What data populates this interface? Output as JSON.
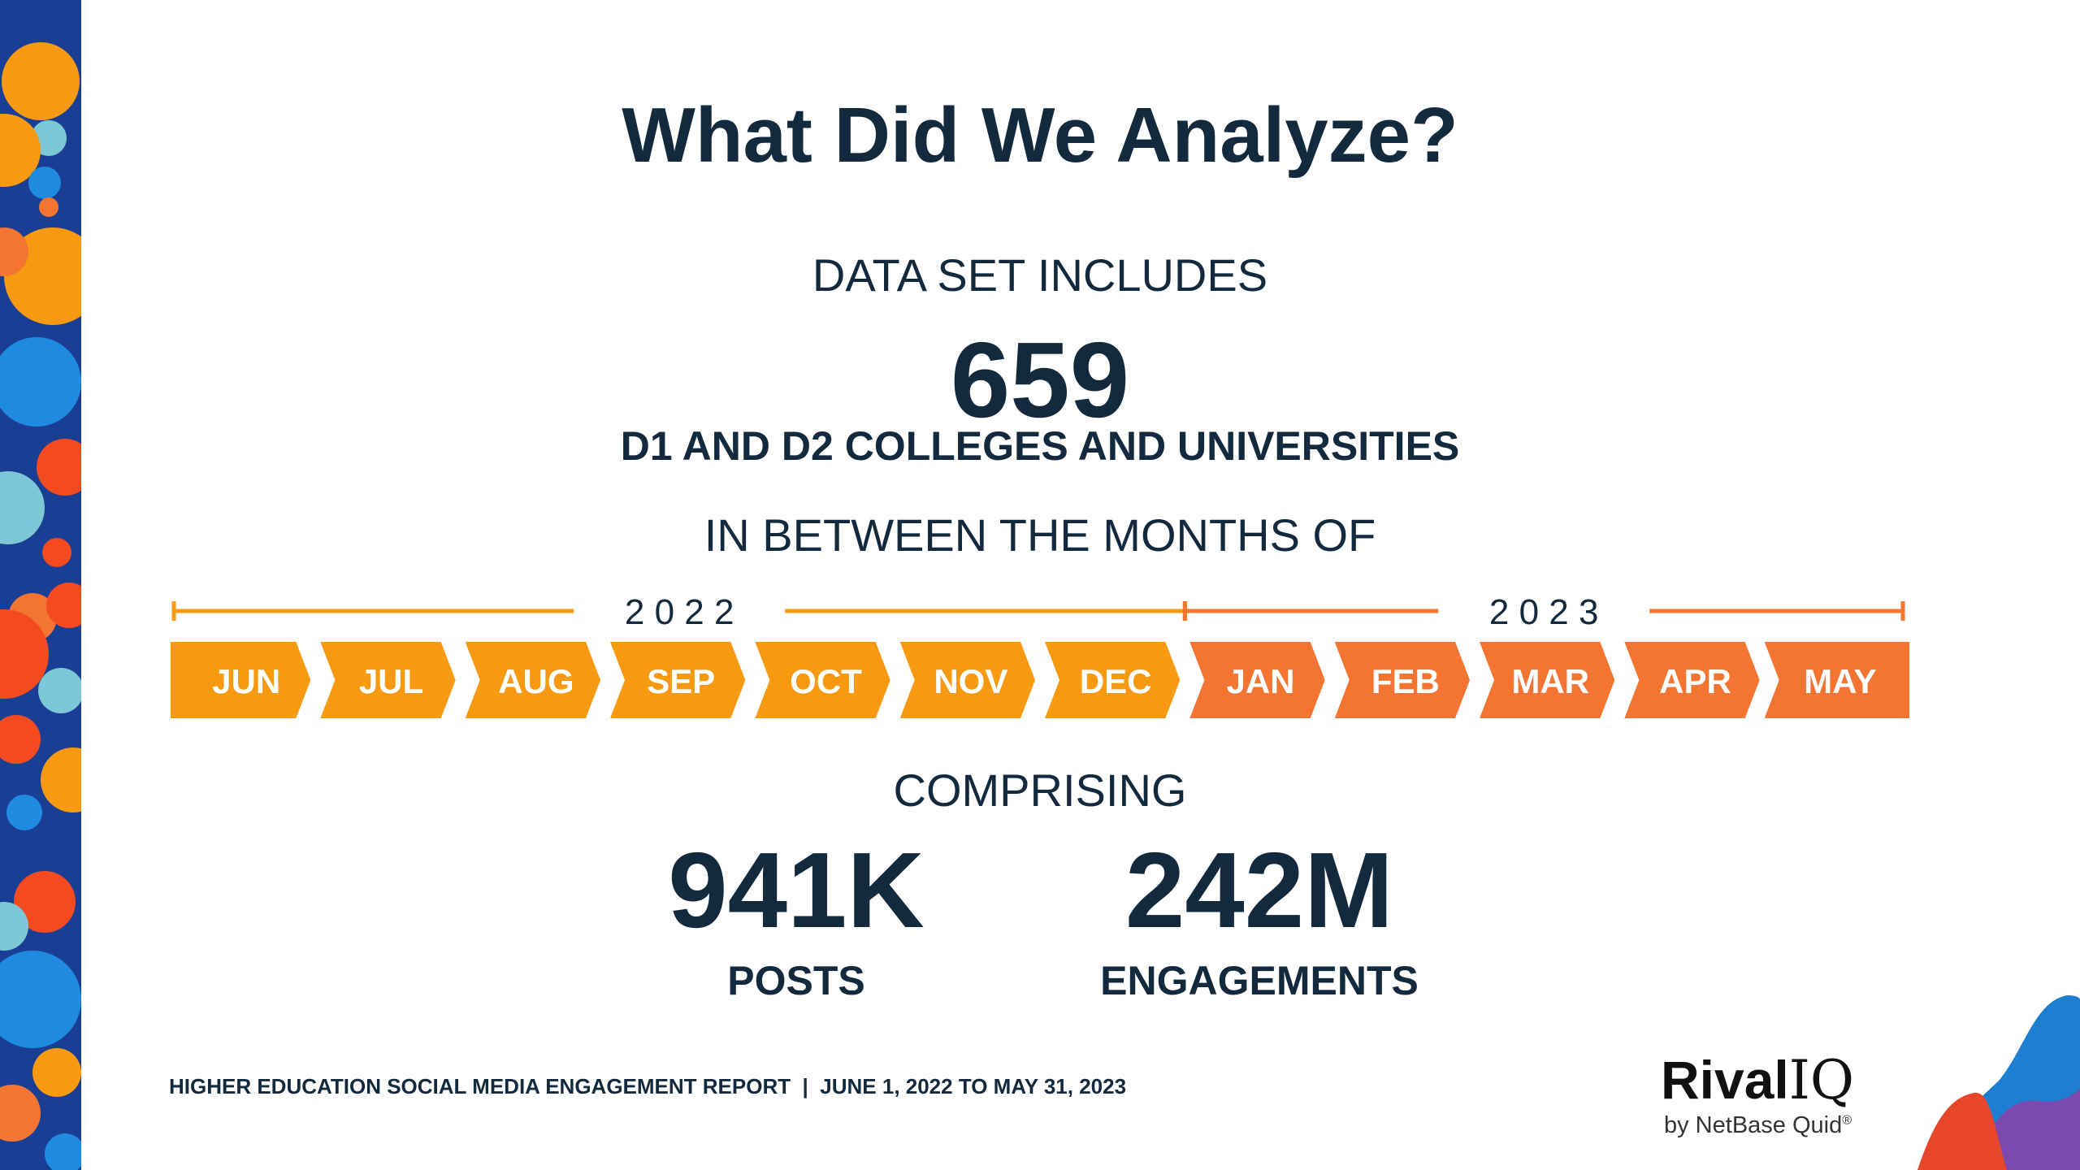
{
  "title": "What Did We Analyze?",
  "data_set_label": "DATA SET INCLUDES",
  "count": {
    "value": "659",
    "subtitle": "D1 AND D2 COLLEGES AND UNIVERSITIES"
  },
  "months_label": "IN BETWEEN THE MONTHS OF",
  "timeline": {
    "years": [
      {
        "label": "2 0 2 2",
        "color": "#f79a11"
      },
      {
        "label": "2 0 2 3",
        "color": "#f47431"
      }
    ],
    "months": [
      {
        "label": "JUN",
        "year": 0
      },
      {
        "label": "JUL",
        "year": 0
      },
      {
        "label": "AUG",
        "year": 0
      },
      {
        "label": "SEP",
        "year": 0
      },
      {
        "label": "OCT",
        "year": 0
      },
      {
        "label": "NOV",
        "year": 0
      },
      {
        "label": "DEC",
        "year": 0
      },
      {
        "label": "JAN",
        "year": 1
      },
      {
        "label": "FEB",
        "year": 1
      },
      {
        "label": "MAR",
        "year": 1
      },
      {
        "label": "APR",
        "year": 1
      },
      {
        "label": "MAY",
        "year": 1
      }
    ]
  },
  "comprising_label": "COMPRISING",
  "stats": {
    "posts": {
      "value": "941K",
      "label": "POSTS"
    },
    "engagements": {
      "value": "242M",
      "label": "ENGAGEMENTS"
    }
  },
  "footer": "HIGHER EDUCATION SOCIAL MEDIA ENGAGEMENT REPORT  |  JUNE 1, 2022 TO MAY 31, 2023",
  "logo": {
    "brand": "Rival",
    "brand_suffix": "IQ",
    "sub": "by NetBase Quid",
    "registered": "®"
  },
  "icons": {
    "deco": "confetti-dots-decoration",
    "wave": "wave-shape-decoration"
  }
}
